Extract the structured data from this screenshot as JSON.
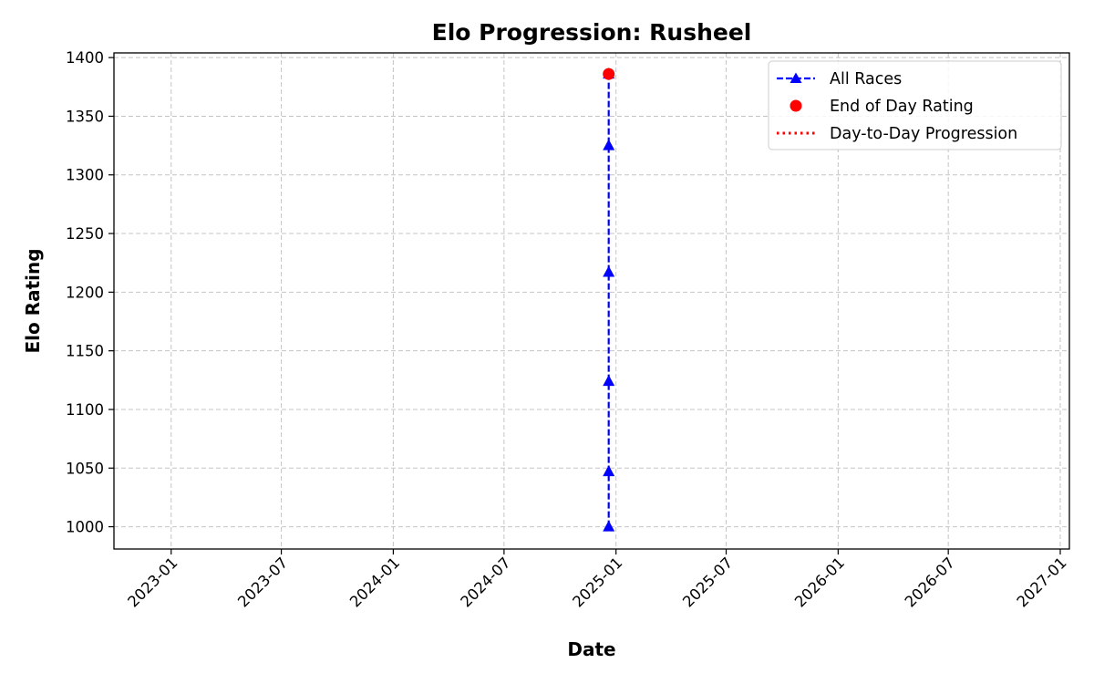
{
  "chart_data": {
    "type": "line",
    "title": "Elo Progression: Rusheel",
    "xlabel": "Date",
    "ylabel": "Elo Rating",
    "xlim": [
      "2022-09-29",
      "2027-01-16"
    ],
    "ylim": [
      981,
      1404
    ],
    "x_ticks": [
      "2023-01",
      "2023-07",
      "2024-01",
      "2024-07",
      "2025-01",
      "2025-07",
      "2026-01",
      "2026-07",
      "2027-01"
    ],
    "y_ticks": [
      1000,
      1050,
      1100,
      1150,
      1200,
      1250,
      1300,
      1350,
      1400
    ],
    "grid": true,
    "legend_position": "top-right",
    "series": [
      {
        "name": "All Races",
        "style": "dashed-line-triangle-markers",
        "color": "#0000ff",
        "x": [
          "2024-12-20",
          "2024-12-20",
          "2024-12-20",
          "2024-12-20",
          "2024-12-20",
          "2024-12-20"
        ],
        "y": [
          1000,
          1047,
          1124,
          1217,
          1325,
          1386
        ]
      },
      {
        "name": "End of Day Rating",
        "style": "circle-markers",
        "color": "#ff0000",
        "x": [
          "2024-12-20"
        ],
        "y": [
          1386
        ]
      },
      {
        "name": "Day-to-Day Progression",
        "style": "dotted-line",
        "color": "#ff0000",
        "x": [
          "2024-12-20"
        ],
        "y": [
          1386
        ]
      }
    ]
  }
}
